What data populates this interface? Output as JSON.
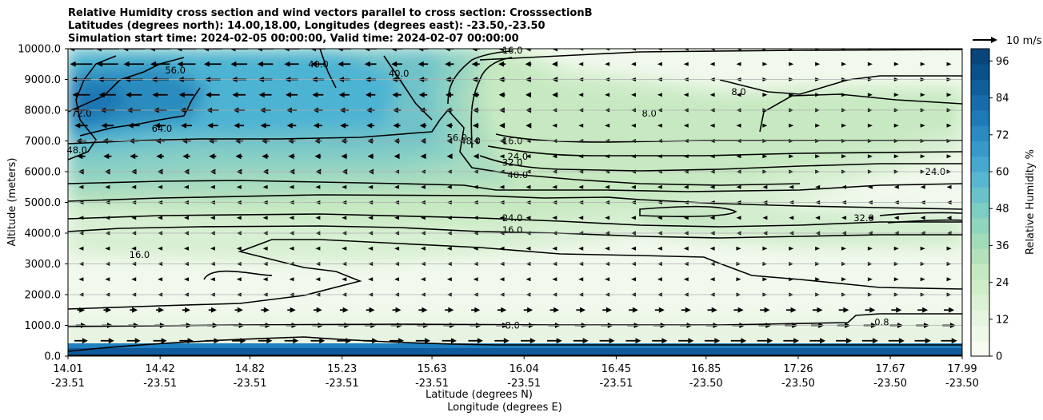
{
  "chart_data": {
    "type": "heatmap",
    "title_lines": [
      "Relative Humidity cross section and wind vectors parallel to cross section: CrosssectionB",
      "Latitudes (degrees north): 14.00,18.00, Longitudes (degrees east): -23.50,-23.50",
      "Simulation start time: 2024-02-05 00:00:00, Valid time: 2024-02-07 00:00:00"
    ],
    "ylabel": "Altitude (meters)",
    "xlabel_lat": "Latitude (degrees N)",
    "xlabel_lon": "Longitude (degrees E)",
    "ylim": [
      0,
      10000
    ],
    "yticks": [
      "0.0",
      "1000.0",
      "2000.0",
      "3000.0",
      "4000.0",
      "5000.0",
      "6000.0",
      "7000.0",
      "8000.0",
      "9000.0",
      "10000.0"
    ],
    "xticks": [
      {
        "lat": "14.01",
        "lon": "-23.51"
      },
      {
        "lat": "14.42",
        "lon": "-23.51"
      },
      {
        "lat": "14.82",
        "lon": "-23.51"
      },
      {
        "lat": "15.23",
        "lon": "-23.51"
      },
      {
        "lat": "15.63",
        "lon": "-23.51"
      },
      {
        "lat": "16.04",
        "lon": "-23.51"
      },
      {
        "lat": "16.45",
        "lon": "-23.51"
      },
      {
        "lat": "16.85",
        "lon": "-23.50"
      },
      {
        "lat": "17.26",
        "lon": "-23.50"
      },
      {
        "lat": "17.67",
        "lon": "-23.50"
      },
      {
        "lat": "17.99",
        "lon": "-23.50"
      }
    ],
    "colorbar": {
      "label": "Relative Humidity %",
      "min": 0,
      "max": 100,
      "ticks": [
        "0",
        "12",
        "24",
        "36",
        "48",
        "60",
        "72",
        "84",
        "96"
      ]
    },
    "quiver_key": "10 m/s",
    "contour_labels": [
      {
        "text": "56.0",
        "x": 0.12,
        "alt": 9300
      },
      {
        "text": "64.0",
        "x": 0.105,
        "alt": 7400
      },
      {
        "text": "72.0",
        "x": 0.015,
        "alt": 7900
      },
      {
        "text": "48.0",
        "x": 0.01,
        "alt": 6700
      },
      {
        "text": "40.0",
        "x": 0.37,
        "alt": 9200
      },
      {
        "text": "40.0",
        "x": 0.28,
        "alt": 9500
      },
      {
        "text": "56.0",
        "x": 0.435,
        "alt": 7100
      },
      {
        "text": "48.0",
        "x": 0.45,
        "alt": 7000
      },
      {
        "text": "16.0",
        "x": 0.497,
        "alt": 7000
      },
      {
        "text": "24.0",
        "x": 0.503,
        "alt": 6500
      },
      {
        "text": "32.0",
        "x": 0.497,
        "alt": 6300
      },
      {
        "text": "40.0",
        "x": 0.503,
        "alt": 5900
      },
      {
        "text": "24.0",
        "x": 0.497,
        "alt": 4500
      },
      {
        "text": "16.0",
        "x": 0.497,
        "alt": 4100
      },
      {
        "text": "16.0",
        "x": 0.497,
        "alt": 9950
      },
      {
        "text": "8.0",
        "x": 0.75,
        "alt": 8600
      },
      {
        "text": "8.0",
        "x": 0.65,
        "alt": 7900
      },
      {
        "text": "24.0",
        "x": 0.97,
        "alt": 6000
      },
      {
        "text": "32.0",
        "x": 0.89,
        "alt": 4500
      },
      {
        "text": "16.0",
        "x": 0.08,
        "alt": 3300
      },
      {
        "text": "8.0",
        "x": 0.497,
        "alt": 1000
      },
      {
        "text": "0.8",
        "x": 0.91,
        "alt": 1100
      }
    ]
  }
}
